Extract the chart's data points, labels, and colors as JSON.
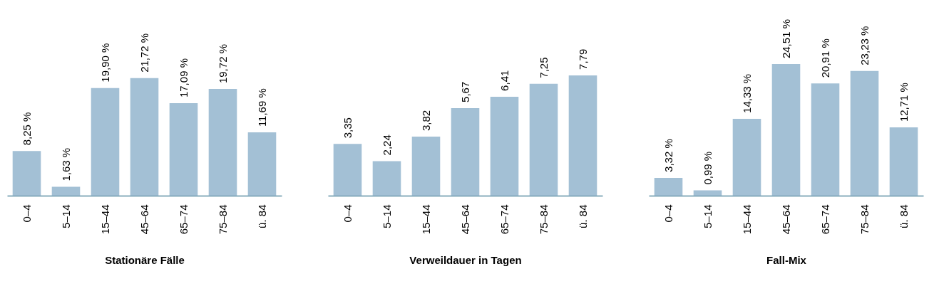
{
  "chart_data": [
    {
      "type": "bar",
      "xlabel": "Stationäre Fälle",
      "categories": [
        "0–4",
        "5–14",
        "15–44",
        "45–64",
        "65–74",
        "75–84",
        "ü. 84"
      ],
      "values": [
        8.25,
        1.63,
        19.9,
        21.72,
        17.09,
        19.72,
        11.69
      ],
      "value_labels": [
        "8,25 %",
        "1,63 %",
        "19,90 %",
        "21,72 %",
        "17,09 %",
        "19,72 %",
        "11,69 %"
      ],
      "color": "#a3c0d5"
    },
    {
      "type": "bar",
      "xlabel": "Verweildauer in Tagen",
      "categories": [
        "0–4",
        "5–14",
        "15–44",
        "45–64",
        "65–74",
        "75–84",
        "ü. 84"
      ],
      "values": [
        3.35,
        2.24,
        3.82,
        5.67,
        6.41,
        7.25,
        7.79
      ],
      "value_labels": [
        "3,35",
        "2,24",
        "3,82",
        "5,67",
        "6,41",
        "7,25",
        "7,79"
      ],
      "color": "#a3c0d5"
    },
    {
      "type": "bar",
      "xlabel": "Fall-Mix",
      "categories": [
        "0–4",
        "5–14",
        "15–44",
        "45–64",
        "65–74",
        "75–84",
        "ü. 84"
      ],
      "values": [
        3.32,
        0.99,
        14.33,
        24.51,
        20.91,
        23.23,
        12.71
      ],
      "value_labels": [
        "3,32 %",
        "0,99 %",
        "14,33 %",
        "24,51 %",
        "20,91 %",
        "23,23 %",
        "12,71 %"
      ],
      "color": "#a3c0d5"
    }
  ]
}
